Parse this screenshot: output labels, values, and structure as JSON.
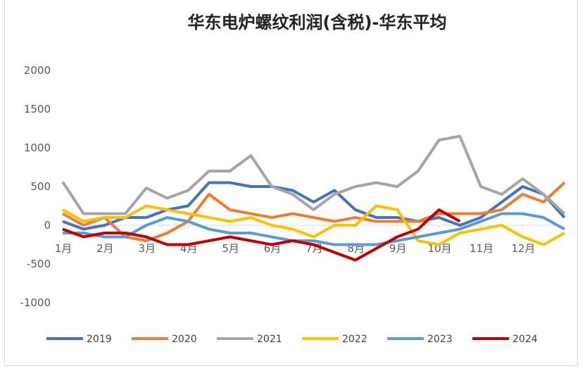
{
  "chart_data": {
    "type": "line",
    "title": "华东电炉螺纹利润(含税)-华东平均",
    "xlabel": "",
    "ylabel": "",
    "ylim": [
      -1000,
      2000
    ],
    "yticks": [
      "2000",
      "1500",
      "1000",
      "500",
      "0",
      "-500",
      "-1000"
    ],
    "ytick_values": [
      2000,
      1500,
      1000,
      500,
      0,
      -500,
      -1000
    ],
    "x_tick_labels": [
      "1月",
      "2月",
      "3月",
      "4月",
      "5月",
      "6月",
      "7月",
      "8月",
      "9月",
      "10月",
      "11月",
      "12月"
    ],
    "x_month": [
      1,
      1.5,
      2,
      2.5,
      3,
      3.5,
      4,
      4.5,
      5,
      5.5,
      6,
      6.5,
      7,
      7.5,
      8,
      8.5,
      9,
      9.5,
      10,
      10.5,
      11,
      11.5,
      12,
      12.5,
      13
    ],
    "grid": false,
    "legend": "bottom",
    "series": [
      {
        "name": "2019",
        "color": "#4472C4",
        "values": [
          50,
          -50,
          0,
          100,
          100,
          200,
          250,
          550,
          550,
          500,
          500,
          450,
          300,
          450,
          200,
          100,
          100,
          50,
          100,
          0,
          100,
          300,
          500,
          400,
          100
        ]
      },
      {
        "name": "2020",
        "color": "#ED7D31",
        "values": [
          150,
          0,
          100,
          -150,
          -200,
          -100,
          50,
          400,
          200,
          150,
          100,
          150,
          100,
          50,
          100,
          50,
          50,
          50,
          150,
          150,
          150,
          200,
          400,
          300,
          550
        ]
      },
      {
        "name": "2021",
        "color": "#A5A5A5",
        "values": [
          560,
          150,
          150,
          150,
          480,
          350,
          450,
          700,
          700,
          900,
          500,
          400,
          200,
          400,
          500,
          550,
          500,
          700,
          1100,
          1150,
          500,
          400,
          600,
          400,
          150
        ]
      },
      {
        "name": "2022",
        "color": "#FFC000",
        "values": [
          200,
          50,
          100,
          100,
          250,
          200,
          150,
          100,
          50,
          100,
          0,
          -50,
          -150,
          0,
          0,
          250,
          200,
          -200,
          -250,
          -100,
          -50,
          0,
          -150,
          -250,
          -100
        ]
      },
      {
        "name": "2023",
        "color": "#5B9BD5",
        "values": [
          -100,
          -100,
          -150,
          -150,
          0,
          100,
          50,
          -50,
          -100,
          -100,
          -150,
          -200,
          -200,
          -250,
          -250,
          -250,
          -200,
          -150,
          -100,
          -50,
          50,
          150,
          150,
          100,
          -50
        ]
      },
      {
        "name": "2024",
        "color": "#C00000",
        "values": [
          -50,
          -150,
          -100,
          -100,
          -150,
          -250,
          -250,
          -200,
          -150,
          -200,
          -250,
          -200,
          -250,
          -350,
          -450,
          -300,
          -150,
          -50,
          200,
          50
        ]
      }
    ]
  }
}
